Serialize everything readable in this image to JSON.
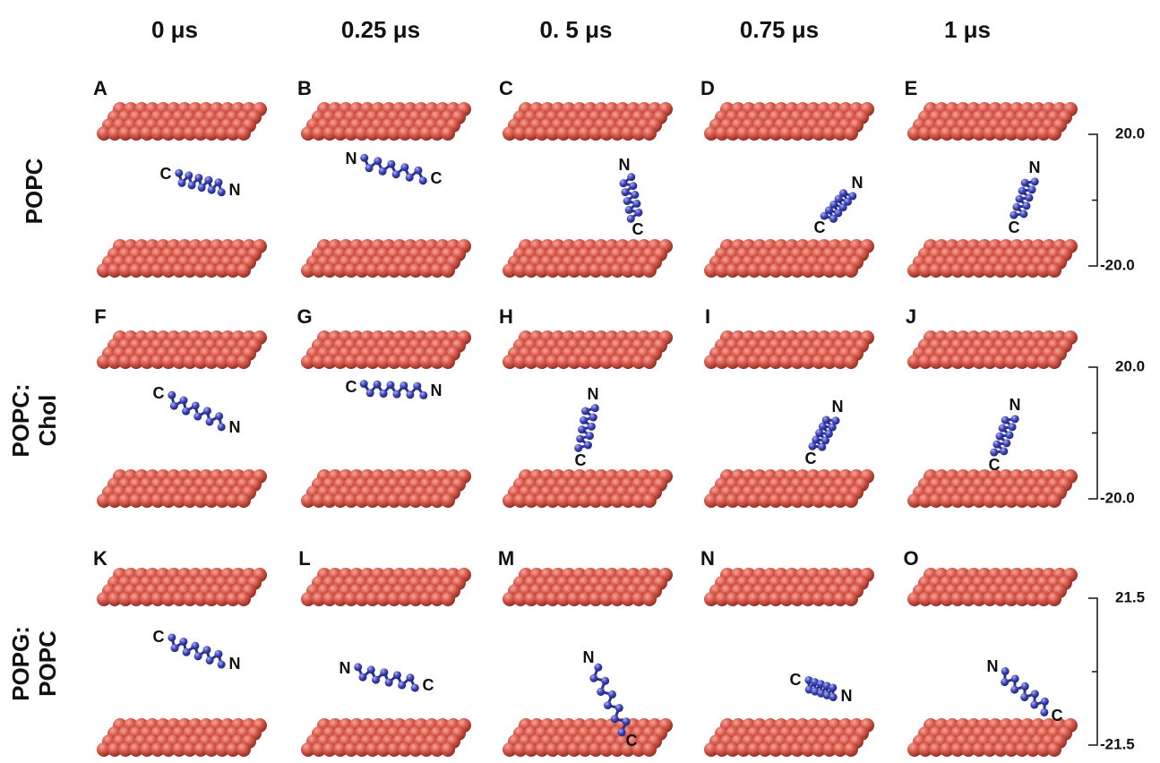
{
  "figure": {
    "columns": [
      "0 μs",
      "0.25 μs",
      "0. 5 μs",
      "0.75 μs",
      "1 μs"
    ],
    "rows": [
      {
        "label": [
          "POPC"
        ],
        "scale": [
          "20.0",
          "-20.0"
        ],
        "panels": [
          {
            "letter": "A",
            "n": "N",
            "c": "C"
          },
          {
            "letter": "B",
            "n": "N",
            "c": "C"
          },
          {
            "letter": "C",
            "n": "N",
            "c": "C"
          },
          {
            "letter": "D",
            "n": "N",
            "c": "C"
          },
          {
            "letter": "E",
            "n": "N",
            "c": "C"
          }
        ]
      },
      {
        "label": [
          "POPC:",
          "Chol"
        ],
        "scale": [
          "20.0",
          "-20.0"
        ],
        "panels": [
          {
            "letter": "F",
            "n": "N",
            "c": "C"
          },
          {
            "letter": "G",
            "n": "N",
            "c": "C"
          },
          {
            "letter": "H",
            "n": "N",
            "c": "C"
          },
          {
            "letter": "I",
            "n": "N",
            "c": "C"
          },
          {
            "letter": "J",
            "n": "N",
            "c": "C"
          }
        ]
      },
      {
        "label": [
          "POPG:",
          "POPC"
        ],
        "scale": [
          "21.5",
          "-21.5"
        ],
        "panels": [
          {
            "letter": "K",
            "n": "N",
            "c": "C"
          },
          {
            "letter": "L",
            "n": "N",
            "c": "C"
          },
          {
            "letter": "M",
            "n": "N",
            "c": "C"
          },
          {
            "letter": "N",
            "n": "N",
            "c": "C"
          },
          {
            "letter": "O",
            "n": "N",
            "c": "C"
          }
        ]
      }
    ]
  }
}
